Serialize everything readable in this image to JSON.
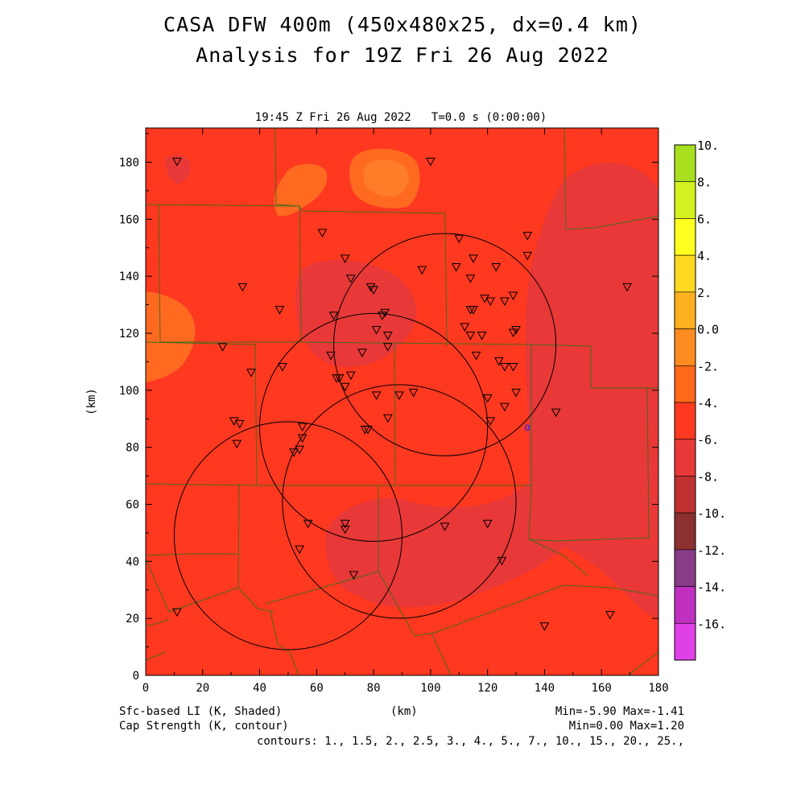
{
  "title_line1": "CASA DFW 400m (450x480x25, dx=0.4 km)",
  "title_line2": "Analysis for 19Z Fri 26 Aug 2022",
  "valid_time": "19:45 Z Fri 26 Aug 2022   T=0.0 s (0:00:00)",
  "x_axis": {
    "label": "(km)",
    "range": [
      0,
      180
    ],
    "ticks": [
      "0",
      "20",
      "40",
      "60",
      "80",
      "100",
      "120",
      "140",
      "160",
      "180"
    ]
  },
  "y_axis": {
    "label": "(km)",
    "range": [
      0,
      192
    ],
    "ticks": [
      "0",
      "20",
      "40",
      "60",
      "80",
      "100",
      "120",
      "140",
      "160",
      "180"
    ]
  },
  "colorbar": {
    "labels": [
      "10.",
      "8.",
      "6.",
      "4.",
      "2.",
      "0.0",
      "-2.",
      "-4.",
      "-6.",
      "-8.",
      "-10.",
      "-12.",
      "-14.",
      "-16."
    ],
    "colors": [
      "#a8e020",
      "#d4f020",
      "#ffff20",
      "#ffd820",
      "#ffb020",
      "#ff8c20",
      "#ff6818",
      "#ff3820",
      "#e83838",
      "#c03030",
      "#8c3030",
      "#883c88",
      "#c030c0",
      "#e040e8"
    ]
  },
  "field_colors": {
    "base": "#ff3820",
    "lower": "#e83838",
    "warm": "#ff6a20",
    "warmer": "#ff8a30"
  },
  "footer": {
    "left1": "Sfc-based LI (K, Shaded)",
    "left2": "Cap Strength (K, contour)",
    "center": "(km)",
    "right1": "Min=-5.90 Max=-1.41",
    "right2": "Min=0.00 Max=1.20",
    "contours": "contours: 1., 1.5, 2., 2.5, 3., 4., 5., 7., 10., 15., 20., 25.,"
  },
  "radar_marker": "o",
  "map_data": {
    "radar_rings": [
      {
        "cx": 105,
        "cy": 116,
        "r": 39
      },
      {
        "cx": 80,
        "cy": 87,
        "r": 40
      },
      {
        "cx": 89,
        "cy": 61,
        "r": 41
      },
      {
        "cx": 50,
        "cy": 49,
        "r": 40
      }
    ],
    "radar_site": [
      134,
      87
    ],
    "stations": [
      [
        11,
        180
      ],
      [
        100,
        180
      ],
      [
        62,
        155
      ],
      [
        134,
        154
      ],
      [
        110,
        153
      ],
      [
        70,
        146
      ],
      [
        115,
        146
      ],
      [
        134,
        147
      ],
      [
        109,
        143
      ],
      [
        123,
        143
      ],
      [
        97,
        142
      ],
      [
        72,
        139
      ],
      [
        114,
        139
      ],
      [
        34,
        136
      ],
      [
        79,
        136
      ],
      [
        80,
        135
      ],
      [
        169,
        136
      ],
      [
        119,
        132
      ],
      [
        121,
        131
      ],
      [
        126,
        131
      ],
      [
        129,
        133
      ],
      [
        47,
        128
      ],
      [
        114,
        128
      ],
      [
        115,
        128
      ],
      [
        84,
        127
      ],
      [
        83,
        126
      ],
      [
        66,
        126
      ],
      [
        112,
        122
      ],
      [
        81,
        121
      ],
      [
        85,
        119
      ],
      [
        114,
        119
      ],
      [
        118,
        119
      ],
      [
        129,
        120
      ],
      [
        130,
        121
      ],
      [
        27,
        115
      ],
      [
        76,
        113
      ],
      [
        85,
        115
      ],
      [
        65,
        112
      ],
      [
        116,
        112
      ],
      [
        124,
        110
      ],
      [
        126,
        108
      ],
      [
        129,
        108
      ],
      [
        37,
        106
      ],
      [
        48,
        108
      ],
      [
        67,
        104
      ],
      [
        72,
        105
      ],
      [
        68,
        104
      ],
      [
        70,
        101
      ],
      [
        81,
        98
      ],
      [
        89,
        98
      ],
      [
        94,
        99
      ],
      [
        120,
        97
      ],
      [
        126,
        94
      ],
      [
        130,
        99
      ],
      [
        144,
        92
      ],
      [
        31,
        89
      ],
      [
        33,
        88
      ],
      [
        55,
        87
      ],
      [
        121,
        89
      ],
      [
        85,
        90
      ],
      [
        77,
        86
      ],
      [
        78,
        86
      ],
      [
        55,
        83
      ],
      [
        32,
        81
      ],
      [
        54,
        79
      ],
      [
        52,
        78
      ],
      [
        57,
        53
      ],
      [
        70,
        53
      ],
      [
        70,
        51
      ],
      [
        120,
        53
      ],
      [
        105,
        52
      ],
      [
        54,
        44
      ],
      [
        125,
        40
      ],
      [
        73,
        35
      ],
      [
        11,
        22
      ],
      [
        140,
        17
      ],
      [
        163,
        21
      ]
    ]
  }
}
